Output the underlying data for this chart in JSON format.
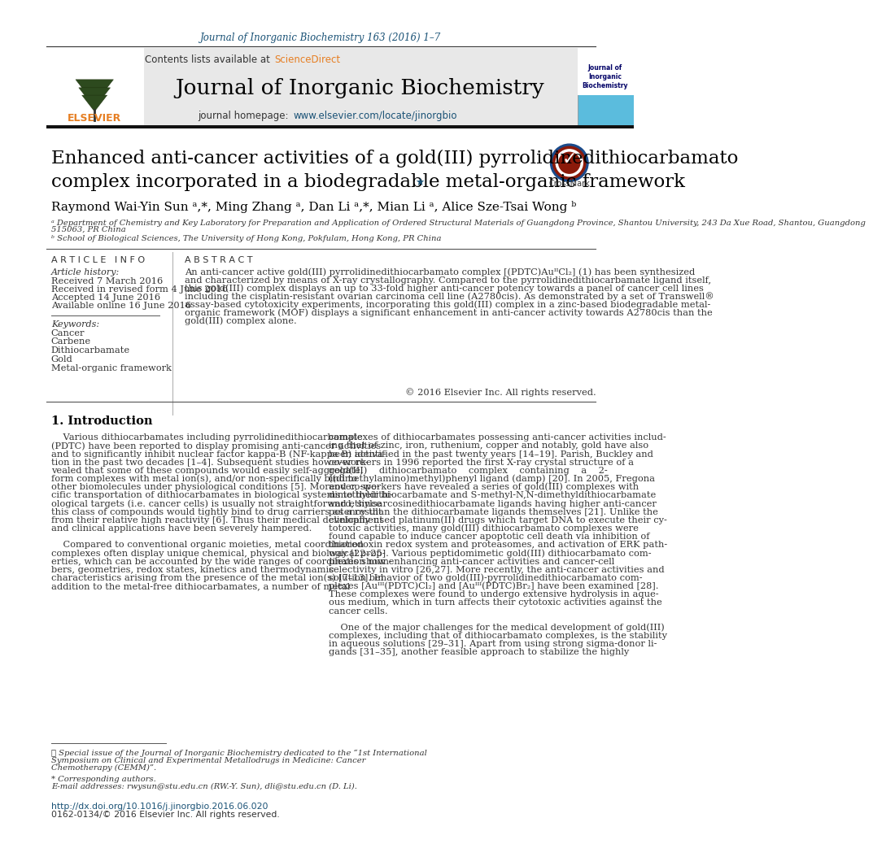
{
  "page_bg": "#ffffff",
  "header_journal_ref": "Journal of Inorganic Biochemistry 163 (2016) 1–7",
  "header_journal_ref_color": "#1a5276",
  "contents_text": "Contents lists available at ",
  "sciencedirect_text": "ScienceDirect",
  "sciencedirect_color": "#e67e22",
  "journal_title": "Journal of Inorganic Biochemistry",
  "journal_homepage_text": "journal homepage: ",
  "journal_homepage_url": "www.elsevier.com/locate/jinorgbio",
  "header_bg": "#e8e8e8",
  "article_title_line1": "Enhanced anti-cancer activities of a gold(III) pyrrolidinedithiocarbamato",
  "article_title_line2": "complex incorporated in a biodegradable metal-organic framework",
  "article_title_star": "★",
  "authors": "Raymond Wai-Yin Sun ᵃ,*, Ming Zhang ᵃ, Dan Li ᵃ,*, Mian Li ᵃ, Alice Sze-Tsai Wong ᵇ",
  "affiliation_a": "ᵃ Department of Chemistry and Key Laboratory for Preparation and Application of Ordered Structural Materials of Guangdong Province, Shantou University, 243 Da Xue Road, Shantou, Guangdong 515063, PR China",
  "affiliation_b": "ᵇ School of Biological Sciences, The University of Hong Kong, Pokfulam, Hong Kong, PR China",
  "article_info_header": "A R T I C L E   I N F O",
  "abstract_header": "A B S T R A C T",
  "article_history_label": "Article history:",
  "received_date": "Received 7 March 2016",
  "revised_date": "Received in revised form 4 June 2016",
  "accepted_date": "Accepted 14 June 2016",
  "online_date": "Available online 16 June 2016",
  "keywords_label": "Keywords:",
  "keywords": [
    "Cancer",
    "Carbene",
    "Dithiocarbamate",
    "Gold",
    "Metal-organic framework"
  ],
  "abstract_lines": [
    "An anti-cancer active gold(III) pyrrolidinedithiocarbamato complex [(PDTC)AuᴵᴵCl₂] (1) has been synthesized",
    "and characterized by means of X-ray crystallography. Compared to the pyrrolidinedithiocarbamate ligand itself,",
    "this gold(III) complex displays an up to 33-fold higher anti-cancer potency towards a panel of cancer cell lines",
    "including the cisplatin-resistant ovarian carcinoma cell line (A2780cis). As demonstrated by a set of Transwell®",
    "assay-based cytotoxicity experiments, incorporating this gold(III) complex in a zinc-based biodegradable metal-",
    "organic framework (MOF) displays a significant enhancement in anti-cancer activity towards A2780cis than the",
    "gold(III) complex alone."
  ],
  "copyright_text": "© 2016 Elsevier Inc. All rights reserved.",
  "intro_header": "1. Introduction",
  "intro_col1_lines": [
    "    Various dithiocarbamates including pyrrolidinedithiocarbamate",
    "(PDTC) have been reported to display promising anti-cancer activities",
    "and to significantly inhibit nuclear factor kappa-B (NF-kappa B) activa-",
    "tion in the past two decades [1–4]. Subsequent studies however re-",
    "vealed that some of these compounds would easily self-aggregate,",
    "form complexes with metal ion(s), and/or non-specifically bind to",
    "other biomolecules under physiological conditions [5]. Moreover, spe-",
    "cific transportation of dithiocarbamates in biological systems to their bi-",
    "ological targets (i.e. cancer cells) is usually not straightforward, since",
    "this class of compounds would tightly bind to drug carriers as a result",
    "from their relative high reactivity [6]. Thus their medical development",
    "and clinical applications have been severely hampered.",
    "",
    "    Compared to conventional organic moieties, metal coordination",
    "complexes often display unique chemical, physical and biological prop-",
    "erties, which can be accounted by the wide ranges of coordination num-",
    "bers, geometries, redox states, kinetics and thermodynamic",
    "characteristics arising from the presence of the metal ion(s) [7–13]. In",
    "addition to the metal-free dithiocarbamates, a number of metal"
  ],
  "intro_col2_lines": [
    "complexes of dithiocarbamates possessing anti-cancer activities includ-",
    "ing that of zinc, iron, ruthenium, copper and notably, gold have also",
    "been identified in the past twenty years [14–19]. Parish, Buckley and",
    "co-workers in 1996 reported the first X-ray crystal structure of a",
    "gold(III)    dithiocarbamato    complex    containing    a    2-",
    "((dimethylamino)methyl)phenyl ligand (damp) [20]. In 2005, Fregona",
    "and co-workers have revealed a series of gold(III) complexes with",
    "dimethyldithiocarbamate and S-methyl-N,N-dimethyldithiocarbamate",
    "and ethylsarcosinedithiocarbamate ligands having higher anti-cancer",
    "potency than the dithiocarbamate ligands themselves [21]. Unlike the",
    "clinically-used platinum(II) drugs which target DNA to execute their cy-",
    "totoxic activities, many gold(III) dithiocarbamato complexes were",
    "found capable to induce cancer apoptotic cell death via inhibition of",
    "thioredoxin redox system and proteasomes, and activation of ERK path-",
    "way [22–25]. Various peptidomimetic gold(III) dithiocarbamato com-",
    "plexes show enhancing anti-cancer activities and cancer-cell",
    "selectivity in vitro [26,27]. More recently, the anti-cancer activities and",
    "solution behavior of two gold(III)-pyrrolidinedithiocarbamato com-",
    "plexes [Auᴵᴵᴵ(PDTC)Cl₂] and [Auᴵᴵᴵ(PDTC)Br₂] have been examined [28].",
    "These complexes were found to undergo extensive hydrolysis in aque-",
    "ous medium, which in turn affects their cytotoxic activities against the",
    "cancer cells.",
    "",
    "    One of the major challenges for the medical development of gold(III)",
    "complexes, including that of dithiocarbamato complexes, is the stability",
    "in aqueous solutions [29–31]. Apart from using strong sigma-donor li-",
    "gands [31–35], another feasible approach to stabilize the highly"
  ],
  "footnote_star_text": "★ Special issue of the Journal of Inorganic Biochemistry dedicated to the “1st International",
  "footnote_star_text2": "Symposium on Clinical and Experimental Metallodrugs in Medicine: Cancer",
  "footnote_star_text3": "Chemotherapy (CEMM)”.",
  "footnote_corresponding": "* Corresponding authors.",
  "footnote_email": "E-mail addresses: rwysun@stu.edu.cn (RW.-Y. Sun), dli@stu.edu.cn (D. Li).",
  "doi_text": "http://dx.doi.org/10.1016/j.jinorgbio.2016.06.020",
  "issn_text": "0162-0134/© 2016 Elsevier Inc. All rights reserved.",
  "link_color": "#1a5276",
  "black": "#000000",
  "dark_gray": "#333333",
  "medium_gray": "#555555",
  "light_gray": "#cccccc"
}
